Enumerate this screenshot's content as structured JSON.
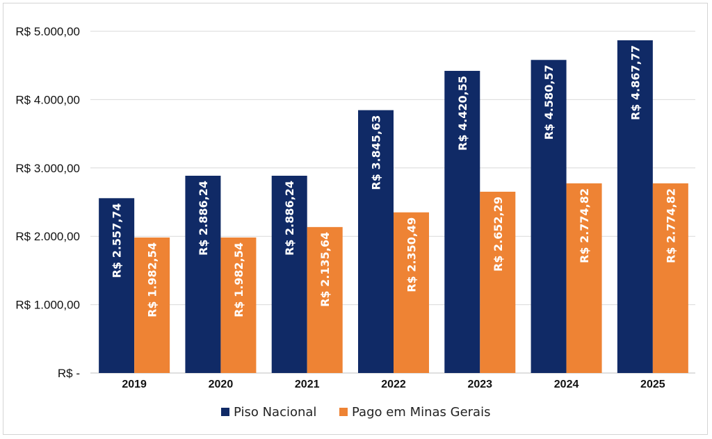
{
  "chart_data": {
    "type": "bar",
    "categories": [
      "2019",
      "2020",
      "2021",
      "2022",
      "2023",
      "2024",
      "2025"
    ],
    "series": [
      {
        "name": "Piso Nacional",
        "color": "#102a66",
        "values": [
          2557.74,
          2886.24,
          2886.24,
          3845.63,
          4420.55,
          4580.57,
          4867.77
        ],
        "labels": [
          "R$ 2.557,74",
          "R$ 2.886,24",
          "R$ 2.886,24",
          "R$ 3.845,63",
          "R$ 4.420,55",
          "R$ 4.580,57",
          "R$ 4.867,77"
        ]
      },
      {
        "name": "Pago em Minas Gerais",
        "color": "#ee8334",
        "values": [
          1982.54,
          1982.54,
          2135.64,
          2350.49,
          2652.29,
          2774.82,
          2774.82
        ],
        "labels": [
          "R$ 1.982,54",
          "R$ 1.982,54",
          "R$ 2.135,64",
          "R$ 2.350,49",
          "R$ 2.652,29",
          "R$ 2.774,82",
          "R$ 2.774,82"
        ]
      }
    ],
    "yticks": [
      0,
      1000,
      2000,
      3000,
      4000,
      5000
    ],
    "ytick_labels": [
      "R$ -",
      "R$ 1.000,00",
      "R$ 2.000,00",
      "R$ 3.000,00",
      "R$ 4.000,00",
      "R$ 5.000,00"
    ],
    "ylim": [
      0,
      5000
    ],
    "grid": true,
    "legend_position": "bottom",
    "title": "",
    "xlabel": "",
    "ylabel": ""
  }
}
